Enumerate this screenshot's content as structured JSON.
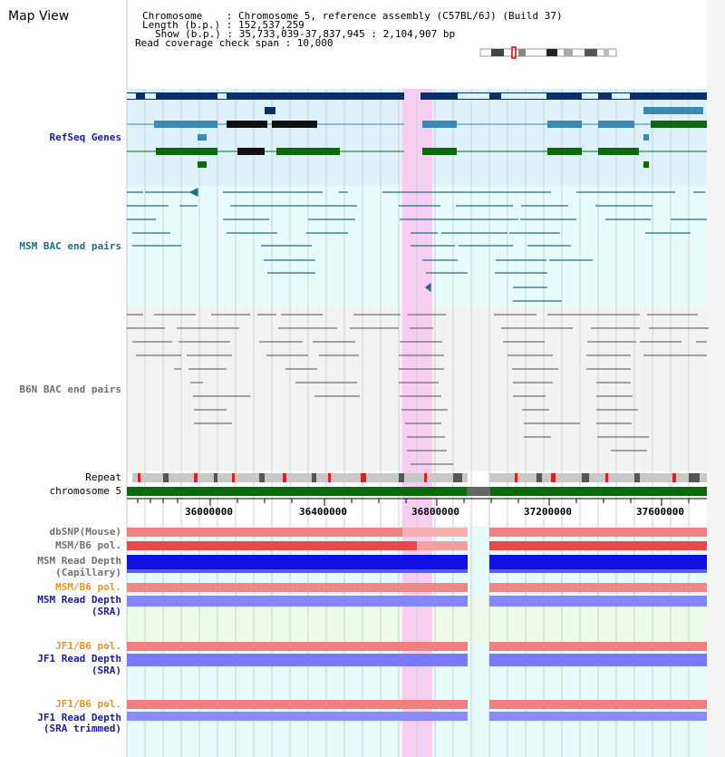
{
  "view": {
    "title": "Map View"
  },
  "header": {
    "chromosome_line": "Chromosome    : Chromosome 5, reference assembly (C57BL/6J) (Build 37)",
    "length_line": "Length (b.p.) : 152,537,259",
    "show_line": "Show (b.p.) : 35,733,039-37,837,945 : 2,104,907 bp",
    "coverage_line": "Read coverage check span : 10,000"
  },
  "tracks": {
    "refseq": "RefSeq Genes",
    "msm_bac": "MSM BAC end pairs",
    "b6n_bac": "B6N BAC end pairs",
    "repeat": "Repeat",
    "chromosome": "chromosome 5",
    "dbsnp": "dbSNP(Mouse)",
    "msm_b6_pol": "MSM/B6 pol.",
    "msm_read_depth_cap_1": "MSM Read Depth",
    "msm_read_depth_cap_2": "(Capillary)",
    "msm_b6_pol_2": "MSM/B6 pol.",
    "msm_read_depth_sra_1": "MSM Read Depth",
    "msm_read_depth_sra_2": "(SRA)",
    "jf1_b6_pol": "JF1/B6 pol.",
    "jf1_read_depth_sra_1": "JF1 Read Depth",
    "jf1_read_depth_sra_2": "(SRA)",
    "jf1_b6_pol_2": "JF1/B6 pol.",
    "jf1_read_depth_trim_1": "JF1 Read Depth",
    "jf1_read_depth_trim_2": "(SRA trimmed)"
  },
  "axis": {
    "ticks": [
      "36000000",
      "36400000",
      "36800000",
      "37200000",
      "37600000"
    ]
  },
  "colors": {
    "refseq_dark": "#0b2f6b",
    "refseq_mid": "#3a8ab8",
    "refseq_green": "#0b6b0b",
    "highlight": "#f7cdf2",
    "bac_teal": "#1f6f86",
    "bac_grey": "#707070",
    "depth_blue": "#1010e0",
    "depth_light": "#7a7aff",
    "pol_red": "#e04040"
  }
}
